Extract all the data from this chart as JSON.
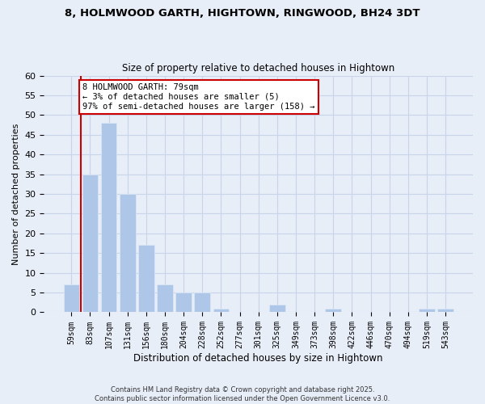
{
  "title": "8, HOLMWOOD GARTH, HIGHTOWN, RINGWOOD, BH24 3DT",
  "subtitle": "Size of property relative to detached houses in Hightown",
  "xlabel": "Distribution of detached houses by size in Hightown",
  "ylabel": "Number of detached properties",
  "bar_labels": [
    "59sqm",
    "83sqm",
    "107sqm",
    "131sqm",
    "156sqm",
    "180sqm",
    "204sqm",
    "228sqm",
    "252sqm",
    "277sqm",
    "301sqm",
    "325sqm",
    "349sqm",
    "373sqm",
    "398sqm",
    "422sqm",
    "446sqm",
    "470sqm",
    "494sqm",
    "519sqm",
    "543sqm"
  ],
  "bar_values": [
    7,
    35,
    48,
    30,
    17,
    7,
    5,
    5,
    1,
    0,
    0,
    2,
    0,
    0,
    1,
    0,
    0,
    0,
    0,
    1,
    1
  ],
  "bar_color": "#aec6e8",
  "bar_edge_color": "#dce8f5",
  "marker_color": "#cc0000",
  "annotation_lines": [
    "8 HOLMWOOD GARTH: 79sqm",
    "← 3% of detached houses are smaller (5)",
    "97% of semi-detached houses are larger (158) →"
  ],
  "annotation_box_color": "#ffffff",
  "annotation_box_edge": "#cc0000",
  "ylim": [
    0,
    60
  ],
  "yticks": [
    0,
    5,
    10,
    15,
    20,
    25,
    30,
    35,
    40,
    45,
    50,
    55,
    60
  ],
  "grid_color": "#c8d4e8",
  "background_color": "#e8eef8",
  "plot_bg_color": "#e8eef8",
  "footer_line1": "Contains HM Land Registry data © Crown copyright and database right 2025.",
  "footer_line2": "Contains public sector information licensed under the Open Government Licence v3.0."
}
